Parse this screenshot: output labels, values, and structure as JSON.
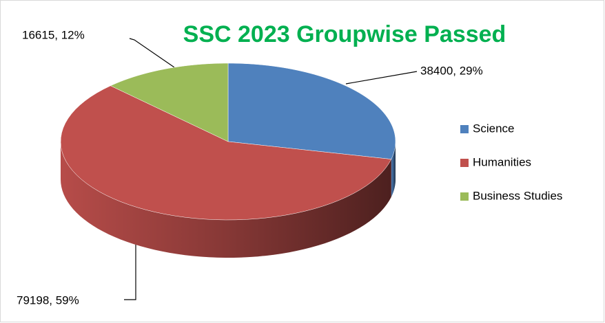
{
  "chart_data": {
    "type": "pie",
    "title": "SSC 2023 Groupwise Passed",
    "categories": [
      "Science",
      "Humanities",
      "Business Studies"
    ],
    "values": [
      38400,
      79198,
      16615
    ],
    "value_labels": [
      "38400, 29%",
      "79198, 59%",
      "16615, 12%"
    ],
    "colors": [
      "#4f81bd",
      "#c0504d",
      "#9bbb59"
    ],
    "legend": "right"
  }
}
